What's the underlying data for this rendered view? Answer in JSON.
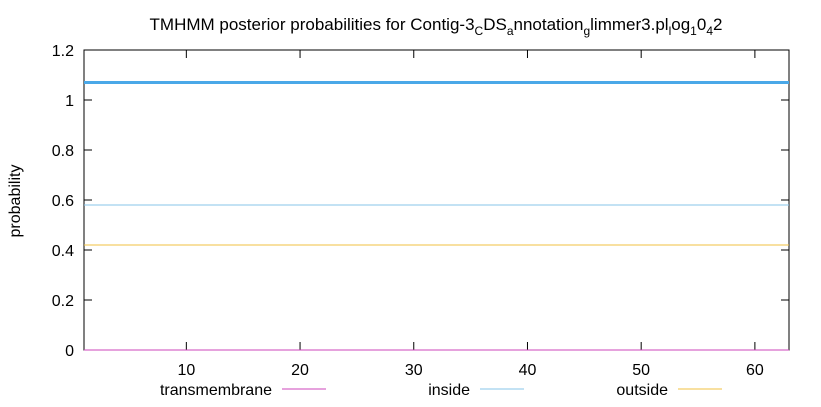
{
  "chart_data": {
    "type": "line",
    "title": {
      "segments": [
        {
          "text": "TMHMM posterior probabilities for Contig-3",
          "sub": false
        },
        {
          "text": "C",
          "sub": true
        },
        {
          "text": "DS",
          "sub": false
        },
        {
          "text": "a",
          "sub": true
        },
        {
          "text": "nnotation",
          "sub": false
        },
        {
          "text": "g",
          "sub": true
        },
        {
          "text": "limmer3.pl",
          "sub": false
        },
        {
          "text": "l",
          "sub": true
        },
        {
          "text": "og",
          "sub": false
        },
        {
          "text": "1",
          "sub": true
        },
        {
          "text": "0",
          "sub": false
        },
        {
          "text": "4",
          "sub": true
        },
        {
          "text": "2",
          "sub": false
        }
      ]
    },
    "xlabel": "",
    "ylabel": "probability",
    "xlim": [
      1,
      63
    ],
    "ylim": [
      0,
      1.2
    ],
    "xticks": [
      "10",
      "20",
      "30",
      "40",
      "50",
      "60"
    ],
    "xtick_values": [
      10,
      20,
      30,
      40,
      50,
      60
    ],
    "yticks": [
      "0",
      "0.2",
      "0.4",
      "0.6",
      "0.8",
      "1",
      "1.2"
    ],
    "ytick_values": [
      0,
      0.2,
      0.4,
      0.6,
      0.8,
      1.0,
      1.2
    ],
    "grid": false,
    "legend_position": "bottom",
    "series": [
      {
        "name": "transmembrane",
        "color": "#cc44bb",
        "x": [
          1,
          63
        ],
        "values": [
          0,
          0
        ],
        "width": "thin"
      },
      {
        "name": "inside",
        "color": "#87c5ea",
        "x": [
          1,
          63
        ],
        "values": [
          0.58,
          0.58
        ],
        "width": "thin"
      },
      {
        "name": "outside",
        "color": "#f0c040",
        "x": [
          1,
          63
        ],
        "values": [
          0.42,
          0.42
        ],
        "width": "thin"
      }
    ],
    "bars": [
      {
        "name": "",
        "color": "#4aa8e8",
        "x": [
          1,
          63
        ],
        "values": [
          1.07,
          1.07
        ],
        "width": "thick"
      }
    ]
  }
}
